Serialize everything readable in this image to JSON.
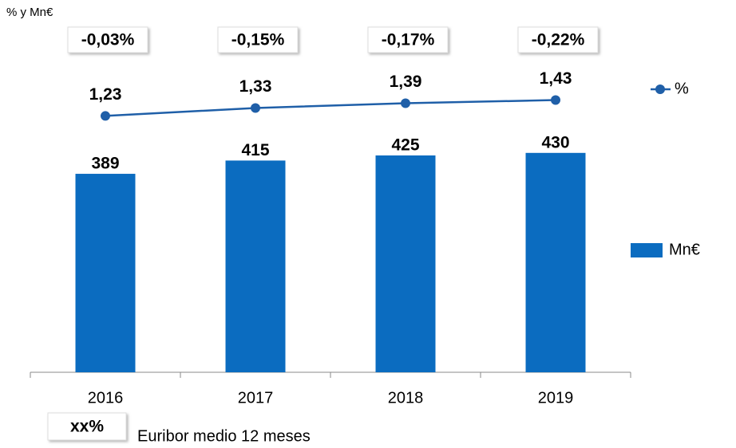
{
  "chart_data": {
    "type": "bar",
    "y_label": "% y Mn€",
    "categories": [
      "2016",
      "2017",
      "2018",
      "2019"
    ],
    "series": [
      {
        "name": "Mn€",
        "type": "bar",
        "color": "#0b6cc0",
        "values": [
          389,
          415,
          425,
          430
        ]
      },
      {
        "name": "%",
        "type": "line",
        "axis": "y2",
        "color": "#1f5fa8",
        "values": [
          1.23,
          1.33,
          1.39,
          1.43
        ],
        "value_labels": [
          "1,23",
          "1,33",
          "1,39",
          "1,43"
        ]
      }
    ],
    "ylim": [
      0,
      700
    ],
    "y2lim": [
      -2,
      2.5
    ],
    "annotations": [
      "-0,03%",
      "-0,15%",
      "-0,17%",
      "-0,22%"
    ],
    "annotation_legend": {
      "label": "xx%",
      "text": "Euribor medio 12 meses"
    },
    "legend": "right"
  }
}
